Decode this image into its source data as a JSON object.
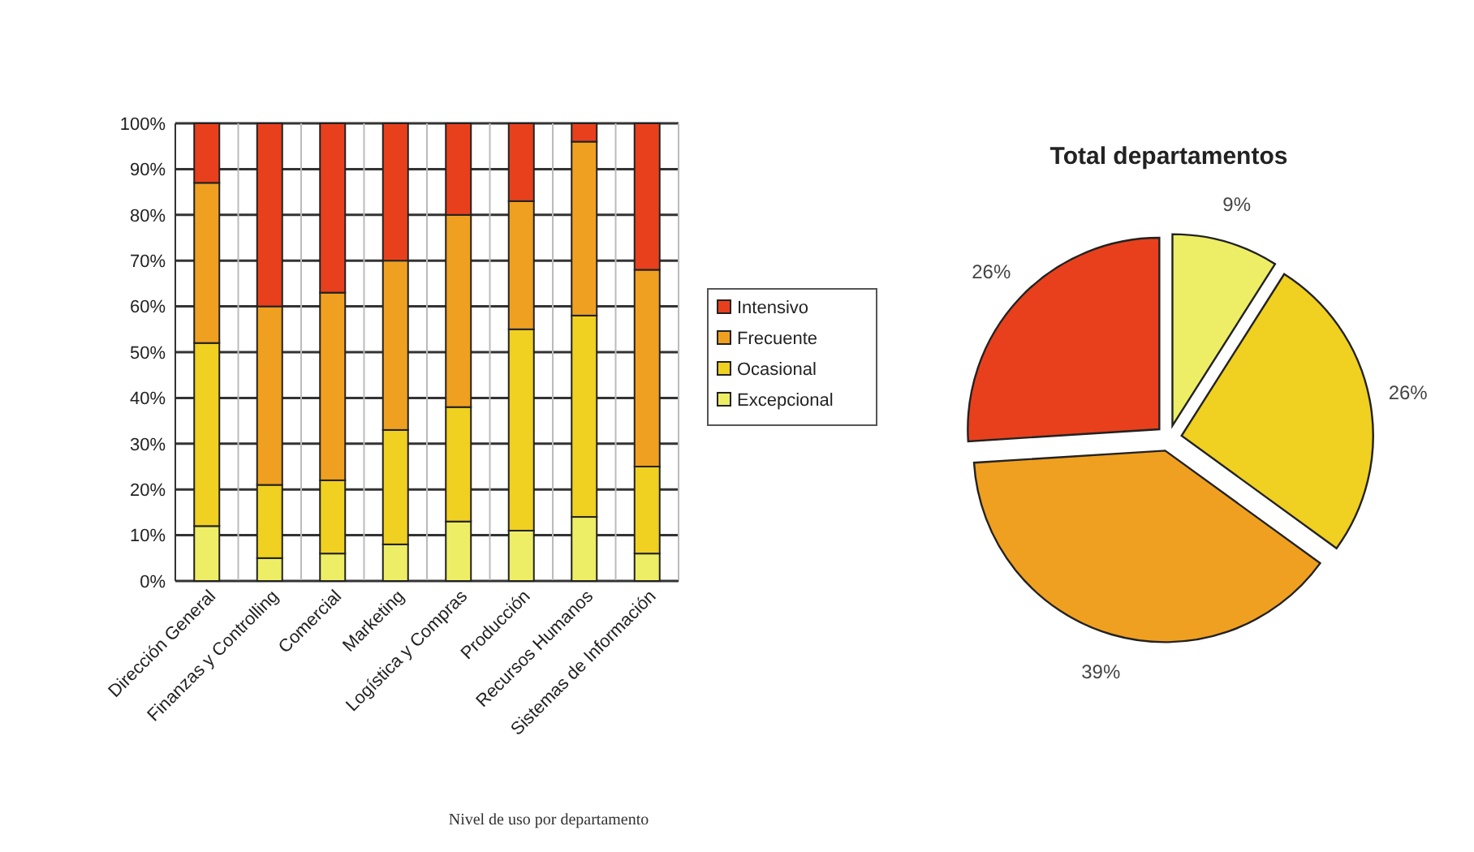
{
  "chart_data": [
    {
      "type": "bar",
      "stacked": true,
      "categories": [
        "Dirección General",
        "Finanzas y Controlling",
        "Comercial",
        "Marketing",
        "Logística y Compras",
        "Producción",
        "Recursos Humanos",
        "Sistemas de Información"
      ],
      "series": [
        {
          "name": "Excepcional",
          "color": "#eeee66",
          "values": [
            12,
            5,
            6,
            8,
            13,
            11,
            14,
            6
          ]
        },
        {
          "name": "Ocasional",
          "color": "#f0d020",
          "values": [
            40,
            16,
            16,
            25,
            25,
            44,
            44,
            19
          ]
        },
        {
          "name": "Frecuente",
          "color": "#f0a020",
          "values": [
            35,
            39,
            41,
            37,
            42,
            28,
            38,
            43
          ]
        },
        {
          "name": "Intensivo",
          "color": "#e8401c",
          "values": [
            13,
            40,
            37,
            30,
            20,
            17,
            4,
            32
          ]
        }
      ],
      "ylim": [
        0,
        100
      ],
      "yticks": [
        {
          "value": 0,
          "label": "0%"
        },
        {
          "value": 10,
          "label": "10%"
        },
        {
          "value": 20,
          "label": "20%"
        },
        {
          "value": 30,
          "label": "30%"
        },
        {
          "value": 40,
          "label": "40%"
        },
        {
          "value": 50,
          "label": "50%"
        },
        {
          "value": 60,
          "label": "60%"
        },
        {
          "value": 70,
          "label": "70%"
        },
        {
          "value": 80,
          "label": "80%"
        },
        {
          "value": 90,
          "label": "90%"
        },
        {
          "value": 100,
          "label": "100%"
        }
      ],
      "grid": true,
      "legend": "right",
      "annotations": [
        "Nivel de uso por departamento"
      ]
    },
    {
      "type": "pie",
      "title": "Total departamentos",
      "categories": [
        null,
        null,
        null,
        null
      ],
      "values": [
        9,
        26,
        39,
        26
      ],
      "colors": [
        "#eeee66",
        "#f0d020",
        "#f0a020",
        "#e8401c"
      ],
      "value_labels": [
        "9%",
        "26%",
        "39%",
        "26%"
      ]
    }
  ]
}
